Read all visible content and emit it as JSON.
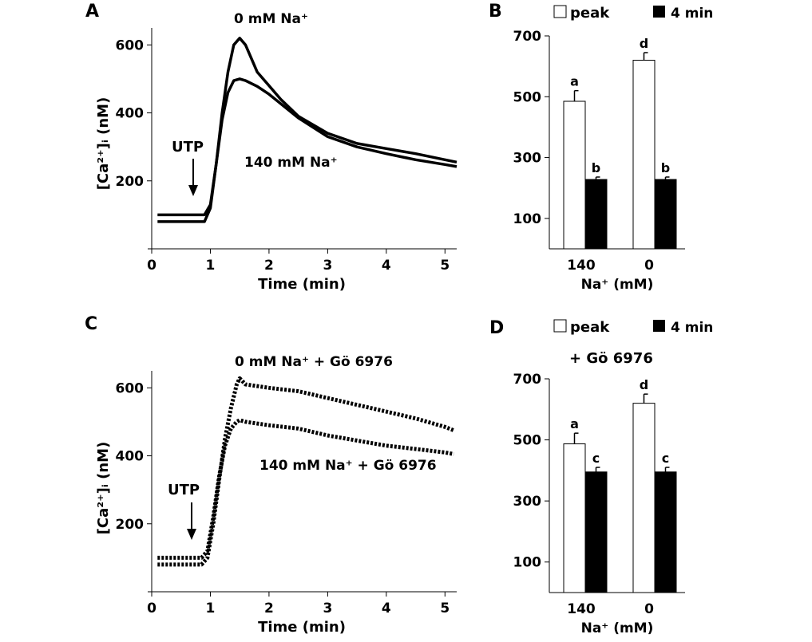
{
  "panels": {
    "A": {
      "letter": "A",
      "chart_data": {
        "type": "line",
        "xlabel": "Time (min)",
        "ylabel": "[Ca²⁺]ᵢ (nM)",
        "xlim": [
          0,
          5.2
        ],
        "ylim": [
          0,
          650
        ],
        "xticks": [
          "0",
          "1",
          "2",
          "3",
          "4",
          "5"
        ],
        "yticks": [
          "200",
          "400",
          "600"
        ],
        "series": [
          {
            "name": "0 mM Na⁺",
            "style": "solid",
            "x": [
              0.1,
              0.9,
              1.0,
              1.1,
              1.2,
              1.3,
              1.4,
              1.5,
              1.6,
              1.7,
              1.8,
              2.0,
              2.2,
              2.5,
              3.0,
              3.5,
              4.0,
              4.5,
              5.0,
              5.2
            ],
            "y": [
              80,
              80,
              120,
              250,
              400,
              520,
              600,
              620,
              600,
              560,
              520,
              480,
              440,
              390,
              340,
              310,
              295,
              280,
              262,
              255
            ]
          },
          {
            "name": "140 mM Na⁺",
            "style": "solid",
            "x": [
              0.1,
              0.9,
              1.0,
              1.1,
              1.2,
              1.3,
              1.4,
              1.5,
              1.6,
              1.8,
              2.0,
              2.5,
              3.0,
              3.5,
              4.0,
              4.5,
              5.0,
              5.2
            ],
            "y": [
              100,
              100,
              130,
              250,
              380,
              460,
              495,
              500,
              495,
              478,
              455,
              385,
              330,
              300,
              280,
              262,
              248,
              242
            ]
          }
        ],
        "annotations": [
          "UTP",
          "0 mM Na⁺",
          "140 mM Na⁺"
        ]
      }
    },
    "B": {
      "letter": "B",
      "legend": {
        "peak": "peak",
        "four_min": "4 min"
      },
      "chart_data": {
        "type": "bar",
        "xlabel": "Na⁺ (mM)",
        "categories": [
          "140",
          "0"
        ],
        "ylim": [
          0,
          700
        ],
        "yticks": [
          "100",
          "300",
          "500",
          "700"
        ],
        "series": [
          {
            "name": "peak",
            "values": [
              485,
              620
            ],
            "errors": [
              35,
              25
            ],
            "labels": [
              "a",
              "d"
            ]
          },
          {
            "name": "4 min",
            "values": [
              228,
              228
            ],
            "errors": [
              8,
              8
            ],
            "labels": [
              "b",
              "b"
            ]
          }
        ]
      }
    },
    "C": {
      "letter": "C",
      "chart_data": {
        "type": "line",
        "xlabel": "Time (min)",
        "ylabel": "[Ca²⁺]ᵢ (nM)",
        "xlim": [
          0,
          5.2
        ],
        "ylim": [
          0,
          650
        ],
        "xticks": [
          "0",
          "1",
          "2",
          "3",
          "4",
          "5"
        ],
        "yticks": [
          "200",
          "400",
          "600"
        ],
        "series": [
          {
            "name": "0 mM Na⁺ + Gö 6976",
            "style": "dotted",
            "x": [
              0.1,
              0.85,
              0.95,
              1.05,
              1.15,
              1.25,
              1.35,
              1.45,
              1.5,
              1.6,
              2.0,
              2.5,
              3.0,
              3.5,
              4.0,
              4.5,
              5.0,
              5.15
            ],
            "y": [
              80,
              80,
              100,
              200,
              330,
              450,
              540,
              610,
              628,
              610,
              600,
              590,
              570,
              550,
              530,
              510,
              485,
              475
            ]
          },
          {
            "name": "140 mM Na⁺ + Gö 6976",
            "style": "dotted",
            "x": [
              0.1,
              0.85,
              0.95,
              1.05,
              1.15,
              1.25,
              1.35,
              1.45,
              1.5,
              1.6,
              2.0,
              2.5,
              3.0,
              3.5,
              4.0,
              4.5,
              5.0,
              5.15
            ],
            "y": [
              100,
              100,
              120,
              220,
              340,
              430,
              480,
              500,
              505,
              500,
              490,
              480,
              460,
              445,
              430,
              420,
              410,
              405
            ]
          }
        ],
        "annotations": [
          "UTP",
          "0 mM Na⁺ + Gö 6976",
          "140 mM Na⁺ + Gö 6976"
        ]
      }
    },
    "D": {
      "letter": "D",
      "legend": {
        "peak": "peak",
        "four_min": "4 min"
      },
      "subtitle": "+ Gö 6976",
      "chart_data": {
        "type": "bar",
        "xlabel": "Na⁺ (mM)",
        "categories": [
          "140",
          "0"
        ],
        "ylim": [
          0,
          700
        ],
        "yticks": [
          "100",
          "300",
          "500",
          "700"
        ],
        "series": [
          {
            "name": "peak",
            "values": [
              487,
              620
            ],
            "errors": [
              35,
              30
            ],
            "labels": [
              "a",
              "d"
            ]
          },
          {
            "name": "4 min",
            "values": [
              395,
              395
            ],
            "errors": [
              15,
              15
            ],
            "labels": [
              "c",
              "c"
            ]
          }
        ]
      }
    }
  }
}
